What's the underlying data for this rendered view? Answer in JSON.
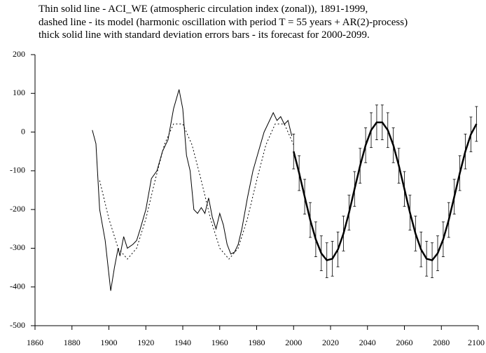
{
  "chart_data": {
    "type": "line",
    "title": [
      "Thin solid line - ACI_WE (atmospheric circulation index (zonal)), 1891-1999,",
      "dashed line - its model (harmonic oscillation with period T = 55 years + AR(2)-process)",
      "thick solid line with standard deviation errors bars - its forecast for 2000-2099."
    ],
    "xlim": [
      1860,
      2100
    ],
    "xticks": [
      1860,
      1880,
      1900,
      1920,
      1940,
      1960,
      1980,
      2000,
      2020,
      2040,
      2060,
      2080,
      2100
    ],
    "ylim": [
      -500,
      200
    ],
    "yticks": [
      -500,
      -400,
      -300,
      -200,
      -100,
      0,
      100,
      200
    ],
    "grid": false,
    "series": [
      {
        "color": "#000000",
        "style": "solid",
        "width": 1,
        "x": [
          1891,
          1893,
          1895,
          1898,
          1901,
          1903,
          1905,
          1906,
          1908,
          1910,
          1913,
          1915,
          1917,
          1920,
          1923,
          1926,
          1929,
          1932,
          1935,
          1938,
          1940,
          1942,
          1944,
          1946,
          1948,
          1950,
          1952,
          1954,
          1956,
          1958,
          1960,
          1962,
          1964,
          1966,
          1968,
          1970,
          1972,
          1975,
          1978,
          1981,
          1984,
          1987,
          1989,
          1991,
          1993,
          1995,
          1997,
          1999
        ],
        "values": [
          5,
          -30,
          -200,
          -280,
          -410,
          -350,
          -300,
          -320,
          -270,
          -300,
          -290,
          -280,
          -250,
          -200,
          -120,
          -100,
          -50,
          -20,
          60,
          110,
          60,
          -60,
          -100,
          -200,
          -210,
          -195,
          -210,
          -170,
          -220,
          -250,
          -210,
          -240,
          -290,
          -315,
          -310,
          -290,
          -250,
          -170,
          -100,
          -50,
          0,
          30,
          50,
          30,
          40,
          20,
          30,
          -10
        ]
      },
      {
        "color": "#000000",
        "style": "dashed",
        "width": 1,
        "x": [
          1895,
          1900,
          1905,
          1910,
          1915,
          1920,
          1925,
          1930,
          1935,
          1940,
          1945,
          1950,
          1955,
          1960,
          1965,
          1970,
          1975,
          1980,
          1985,
          1990,
          1995,
          2000
        ],
        "values": [
          -125,
          -224,
          -300,
          -328,
          -300,
          -224,
          -125,
          -33,
          21,
          21,
          -33,
          -125,
          -224,
          -300,
          -328,
          -300,
          -224,
          -125,
          -33,
          21,
          21,
          -33
        ]
      },
      {
        "color": "#000000",
        "style": "solid",
        "width": 2.5,
        "x": [
          2000,
          2003,
          2006,
          2009,
          2012,
          2015,
          2018,
          2021,
          2024,
          2027,
          2030,
          2033,
          2036,
          2039,
          2042,
          2045,
          2048,
          2051,
          2054,
          2057,
          2060,
          2063,
          2066,
          2069,
          2072,
          2075,
          2078,
          2081,
          2084,
          2087,
          2090,
          2093,
          2096,
          2099
        ],
        "values": [
          -50,
          -106,
          -167,
          -227,
          -277,
          -313,
          -331,
          -327,
          -303,
          -262,
          -208,
          -147,
          -87,
          -34,
          5,
          25,
          25,
          5,
          -34,
          -87,
          -147,
          -208,
          -262,
          -303,
          -327,
          -331,
          -313,
          -277,
          -227,
          -167,
          -106,
          -50,
          -6,
          21
        ],
        "errors": [
          45,
          45,
          45,
          45,
          45,
          45,
          45,
          45,
          45,
          45,
          45,
          45,
          45,
          45,
          45,
          45,
          45,
          45,
          45,
          45,
          45,
          45,
          45,
          45,
          45,
          45,
          45,
          45,
          45,
          45,
          45,
          45,
          45,
          45
        ]
      }
    ]
  }
}
